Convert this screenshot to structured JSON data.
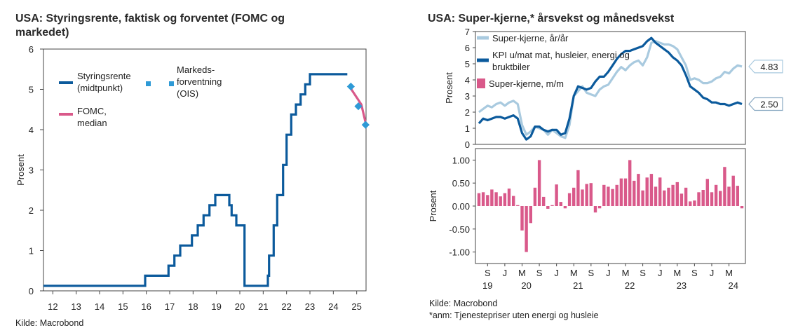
{
  "chart_data": [
    {
      "type": "line",
      "title": "USA: Styringsrente, faktisk og forventet (FOMC og markedet)",
      "title_line1": "USA: Styringsrente, faktisk og forventet (FOMC og",
      "title_line2": "markedet)",
      "ylabel": "Prosent",
      "xlabel": "",
      "ylim": [
        0,
        6
      ],
      "xlim": [
        11.6,
        25.4
      ],
      "yticks": [
        "0",
        "1",
        "2",
        "3",
        "4",
        "5",
        "6"
      ],
      "xticks": [
        "12",
        "13",
        "14",
        "15",
        "16",
        "17",
        "18",
        "19",
        "20",
        "21",
        "22",
        "23",
        "24",
        "25"
      ],
      "source": "Kilde: Macrobond",
      "legend": {
        "styring_line1": "Styringsrente",
        "styring_line2": "(midtpunkt)",
        "fomc_line1": "FOMC,",
        "fomc_line2": "median",
        "ois_line1": "Markeds-",
        "ois_line2": "forventning",
        "ois_line3": "(OIS)"
      },
      "colors": {
        "policy": "#0b5a9c",
        "fomc": "#d9598a",
        "ois": "#2e9ad6"
      },
      "series": [
        {
          "name": "Styringsrente (midtpunkt)",
          "x": [
            11.6,
            15.95,
            15.95,
            16.95,
            16.95,
            17.2,
            17.2,
            17.45,
            17.45,
            17.95,
            17.95,
            18.2,
            18.2,
            18.45,
            18.45,
            18.7,
            18.7,
            18.95,
            18.95,
            19.55,
            19.55,
            19.65,
            19.65,
            19.85,
            19.85,
            20.2,
            20.2,
            21.2,
            21.2,
            21.25,
            21.25,
            21.45,
            21.45,
            21.6,
            21.6,
            21.85,
            21.85,
            22.0,
            22.0,
            22.2,
            22.2,
            22.4,
            22.4,
            22.6,
            22.6,
            22.8,
            22.8,
            23.0,
            23.0,
            23.2,
            23.2,
            23.6,
            23.6,
            24.6
          ],
          "y": [
            0.125,
            0.125,
            0.375,
            0.375,
            0.625,
            0.625,
            0.875,
            0.875,
            1.125,
            1.125,
            1.375,
            1.375,
            1.625,
            1.625,
            1.875,
            1.875,
            2.125,
            2.125,
            2.375,
            2.375,
            2.125,
            2.125,
            1.875,
            1.875,
            1.625,
            1.625,
            0.125,
            0.125,
            0.375,
            0.375,
            0.875,
            0.875,
            1.625,
            1.625,
            2.375,
            2.375,
            3.125,
            3.125,
            3.875,
            3.875,
            4.375,
            4.375,
            4.625,
            4.625,
            4.875,
            4.875,
            5.125,
            5.125,
            5.375,
            5.375,
            5.375,
            5.375,
            5.375,
            5.375
          ]
        },
        {
          "name": "FOMC, median",
          "x": [
            24.7,
            25.2,
            25.4
          ],
          "y": [
            5.0625,
            4.625,
            4.125
          ]
        },
        {
          "name": "Markedsforventning (OIS)",
          "x": [
            24.75,
            25.07,
            25.38
          ],
          "y": [
            5.07,
            4.58,
            4.12
          ]
        }
      ]
    },
    {
      "type": "line",
      "title": "USA: Super-kjerne,* årsvekst og månedsvekst",
      "ylabel": "Prosent",
      "ylim": [
        0,
        7
      ],
      "yticks": [
        "0",
        "1",
        "2",
        "3",
        "4",
        "5",
        "6",
        "7"
      ],
      "legend": {
        "super_yoy": "Super-kjerne, år/år",
        "kpi_line1": "KPI u/mat mat, husleier, energi og",
        "kpi_line2": "bruktbiler"
      },
      "end_labels": {
        "super_yoy": "4.83",
        "kpi": "2.50"
      },
      "colors": {
        "super_yoy": "#a9cadf",
        "kpi": "#0b5a9c",
        "mom": "#d9598a"
      },
      "series": [
        {
          "name": "Super-kjerne, år/år",
          "values": [
            2.0,
            2.2,
            2.4,
            2.3,
            2.5,
            2.6,
            2.4,
            2.6,
            2.7,
            2.5,
            1.2,
            0.6,
            0.8,
            1.1,
            1.0,
            0.9,
            0.6,
            0.9,
            0.7,
            0.5,
            0.4,
            1.2,
            3.0,
            3.3,
            3.6,
            3.2,
            3.1,
            3.0,
            3.4,
            3.6,
            3.7,
            4.1,
            4.5,
            4.8,
            4.6,
            4.9,
            5.1,
            5.2,
            4.9,
            5.4,
            6.3,
            6.4,
            6.3,
            6.2,
            6.2,
            6.1,
            5.9,
            5.4,
            4.9,
            4.0,
            4.1,
            4.0,
            3.8,
            3.8,
            3.9,
            4.1,
            4.2,
            4.5,
            4.4,
            4.7,
            4.9,
            4.83
          ]
        },
        {
          "name": "KPI u/mat mat, husleier, energi og bruktbiler",
          "values": [
            1.3,
            1.6,
            1.5,
            1.6,
            1.7,
            1.7,
            1.6,
            1.7,
            1.8,
            1.6,
            0.7,
            0.3,
            0.5,
            1.1,
            1.1,
            0.9,
            0.8,
            0.9,
            0.9,
            0.6,
            0.7,
            1.6,
            3.0,
            3.6,
            3.5,
            3.4,
            3.5,
            3.9,
            4.2,
            4.2,
            4.5,
            4.9,
            5.3,
            5.6,
            5.8,
            5.8,
            5.9,
            6.0,
            6.1,
            6.4,
            6.6,
            6.3,
            6.1,
            5.9,
            5.7,
            5.4,
            5.2,
            4.9,
            4.3,
            3.6,
            3.4,
            3.2,
            2.9,
            2.8,
            2.6,
            2.6,
            2.5,
            2.5,
            2.4,
            2.5,
            2.6,
            2.5
          ]
        }
      ]
    },
    {
      "type": "bar",
      "title": "",
      "ylabel": "Prosent",
      "ylim": [
        -1.25,
        1.25
      ],
      "yticks": [
        "-1.00",
        "-0.50",
        "0.00",
        "0.50",
        "1.00"
      ],
      "xticks_months": [
        "S",
        "J",
        "M",
        "S",
        "J",
        "M",
        "S",
        "J",
        "M",
        "S",
        "J",
        "M",
        "S",
        "J",
        "M"
      ],
      "xticks_years": [
        "19",
        "20",
        "21",
        "22",
        "23",
        "24"
      ],
      "legend": {
        "mom": "Super-kjerne, m/m"
      },
      "series": [
        {
          "name": "Super-kjerne, m/m",
          "values": [
            0.28,
            0.3,
            0.24,
            0.36,
            0.3,
            0.21,
            0.28,
            0.38,
            0.22,
            0.02,
            -0.53,
            -1.0,
            -0.37,
            0.4,
            1.0,
            0.2,
            -0.06,
            0.02,
            0.47,
            0.09,
            -0.05,
            0.28,
            0.4,
            0.78,
            0.36,
            0.48,
            0.5,
            -0.14,
            -0.05,
            0.46,
            0.42,
            0.37,
            0.46,
            0.6,
            0.6,
            1.0,
            0.55,
            0.7,
            0.34,
            0.62,
            0.7,
            0.42,
            0.62,
            0.34,
            0.4,
            0.46,
            0.52,
            0.27,
            0.4,
            0.1,
            0.12,
            0.3,
            0.35,
            0.59,
            0.3,
            0.46,
            0.33,
            0.85,
            0.42,
            0.66,
            0.44,
            -0.05
          ]
        }
      ]
    }
  ],
  "footer": {
    "source": "Kilde: Macrobond",
    "note": "*anm: Tjenestepriser uten energi og husleie"
  }
}
